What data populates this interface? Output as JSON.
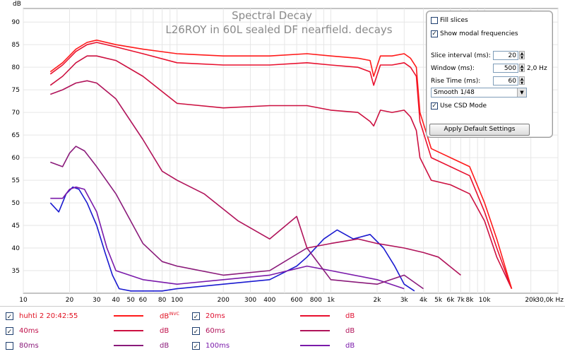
{
  "chart_data": {
    "type": "line",
    "title": "Spectral Decay",
    "subtitle": "L26ROY in 60L sealed DF nearfield. decays",
    "ylabel": "dB",
    "xlabel": "",
    "x_unit": "Hz",
    "x_scale": "log",
    "xlim": [
      10,
      30000
    ],
    "ylim": [
      30,
      93
    ],
    "grid": true,
    "y_ticks": [
      35,
      40,
      45,
      50,
      55,
      60,
      65,
      70,
      75,
      80,
      85,
      90
    ],
    "x_ticks": [
      {
        "v": 10,
        "l": "10"
      },
      {
        "v": 20,
        "l": "20"
      },
      {
        "v": 30,
        "l": "30"
      },
      {
        "v": 40,
        "l": "40"
      },
      {
        "v": 50,
        "l": "50"
      },
      {
        "v": 60,
        "l": "60"
      },
      {
        "v": 80,
        "l": "80"
      },
      {
        "v": 100,
        "l": "100"
      },
      {
        "v": 200,
        "l": "200"
      },
      {
        "v": 300,
        "l": "300"
      },
      {
        "v": 400,
        "l": "400"
      },
      {
        "v": 600,
        "l": "600"
      },
      {
        "v": 800,
        "l": "800"
      },
      {
        "v": 1000,
        "l": "1k"
      },
      {
        "v": 2000,
        "l": "2k"
      },
      {
        "v": 3000,
        "l": "3k"
      },
      {
        "v": 4000,
        "l": "4k"
      },
      {
        "v": 5000,
        "l": "5k"
      },
      {
        "v": 6000,
        "l": "6k"
      },
      {
        "v": 7000,
        "l": "7k"
      },
      {
        "v": 8000,
        "l": "8k"
      },
      {
        "v": 10000,
        "l": "10k"
      },
      {
        "v": 20000,
        "l": "20k"
      },
      {
        "v": 30000,
        "l": "30,0k Hz"
      }
    ],
    "series": [
      {
        "name": "huhti 2 20:42:55",
        "color": "#ff1a1a",
        "x": [
          15,
          18,
          22,
          26,
          30,
          40,
          60,
          100,
          200,
          400,
          700,
          1000,
          1500,
          1800,
          1900,
          2100,
          2500,
          3000,
          3300,
          3600,
          3800,
          4500,
          6000,
          8000,
          10000,
          12000,
          15000
        ],
        "y": [
          79,
          81,
          84,
          85.5,
          86,
          85,
          84,
          83,
          82.5,
          82.5,
          83,
          82.5,
          82,
          81.5,
          78,
          82.5,
          82.5,
          83,
          82,
          80,
          70,
          62,
          60,
          58,
          50,
          42,
          31
        ]
      },
      {
        "name": "20ms",
        "color": "#e8102e",
        "x": [
          15,
          18,
          22,
          26,
          30,
          40,
          60,
          100,
          200,
          400,
          700,
          1000,
          1500,
          1800,
          1900,
          2100,
          2500,
          3000,
          3300,
          3600,
          3800,
          4500,
          6000,
          8000,
          10000,
          12000,
          15000
        ],
        "y": [
          78.5,
          80.5,
          83.5,
          85,
          85.5,
          84.5,
          83,
          81,
          80.5,
          80.5,
          81,
          80.5,
          80,
          79,
          76,
          80.5,
          80.5,
          81,
          80,
          78,
          68,
          60,
          58,
          56,
          48,
          40,
          31
        ]
      },
      {
        "name": "40ms",
        "color": "#cc1040",
        "x": [
          15,
          18,
          22,
          26,
          30,
          40,
          60,
          100,
          200,
          400,
          700,
          1000,
          1500,
          1800,
          1900,
          2100,
          2500,
          3000,
          3300,
          3600,
          3800,
          4500,
          6000,
          8000,
          10000,
          12000,
          15000
        ],
        "y": [
          76,
          78,
          81,
          82.5,
          82.5,
          81.5,
          78,
          72,
          71,
          71.5,
          71.5,
          70.5,
          70,
          68,
          67,
          70.5,
          70,
          70.5,
          69,
          66,
          60,
          55,
          54,
          52,
          46,
          38,
          31
        ]
      },
      {
        "name": "60ms",
        "color": "#b0135a",
        "x": [
          15,
          18,
          22,
          26,
          30,
          40,
          60,
          80,
          100,
          150,
          250,
          400,
          600,
          700,
          1000,
          1500,
          2000,
          3000,
          4000,
          5000,
          7000
        ],
        "y": [
          74,
          75,
          76.5,
          77,
          76.5,
          73,
          64,
          57,
          55,
          52,
          46,
          42,
          47,
          40,
          41,
          42,
          41,
          40,
          39,
          38,
          34
        ]
      },
      {
        "name": "80ms",
        "color": "#8a1a7a",
        "x": [
          15,
          18,
          20,
          22,
          25,
          30,
          40,
          60,
          80,
          100,
          200,
          400,
          700,
          1000,
          2000,
          3000,
          4000
        ],
        "y": [
          59,
          58,
          61,
          62.5,
          61.5,
          58,
          52,
          41,
          37,
          36,
          34,
          35,
          40,
          33,
          32,
          34,
          31
        ]
      },
      {
        "name": "100ms",
        "color": "#7a1aaa",
        "x": [
          15,
          18,
          20,
          22,
          25,
          30,
          35,
          40,
          60,
          100,
          200,
          400,
          700,
          1000,
          2000,
          3000
        ],
        "y": [
          51,
          51,
          53,
          53.5,
          53,
          48,
          40,
          35,
          33,
          32,
          33,
          34,
          36,
          35,
          33,
          31
        ]
      },
      {
        "name": "",
        "color": "#1a1ad0",
        "x": [
          15,
          17,
          19,
          21,
          23,
          26,
          30,
          34,
          38,
          42,
          50,
          60,
          80,
          100,
          200,
          400,
          600,
          700,
          900,
          1100,
          1400,
          1800,
          2200,
          2600,
          3000,
          3500
        ],
        "y": [
          50,
          48,
          52,
          53.5,
          53,
          50,
          45,
          39,
          34,
          31,
          30.5,
          30.5,
          30.5,
          31,
          32,
          33,
          36,
          38,
          42,
          44,
          42,
          43,
          40,
          36,
          32,
          30.5
        ]
      }
    ]
  },
  "settings": {
    "fill_slices_label": "Fill slices",
    "fill_slices_checked": false,
    "show_modal_label": "Show modal frequencies",
    "show_modal_checked": true,
    "slice_interval_label": "Slice interval (ms):",
    "slice_interval_value": "20",
    "window_label": "Window (ms):",
    "window_value": "500",
    "window_unit": "2,0 Hz",
    "rise_time_label": "Rise Time (ms):",
    "rise_time_value": "60",
    "smoothing_value": "Smooth 1/48",
    "use_csd_label": "Use CSD Mode",
    "use_csd_checked": true,
    "apply_label": "Apply Default Settings",
    "check_glyph": "✓",
    "arrow_up": "▲",
    "arrow_down": "▼"
  },
  "legend": [
    {
      "name": "huhti 2 20:42:55",
      "color": "#ff1a1a",
      "unit": "dB",
      "sup": "INVC",
      "checked": true,
      "text_color": "#e01020"
    },
    {
      "name": "20ms",
      "color": "#e8102e",
      "unit": "dB",
      "sup": "",
      "checked": true,
      "text_color": "#e01030"
    },
    {
      "name": "40ms",
      "color": "#cc1040",
      "unit": "dB",
      "sup": "",
      "checked": true,
      "text_color": "#c0104a"
    },
    {
      "name": "60ms",
      "color": "#b0135a",
      "unit": "dB",
      "sup": "",
      "checked": true,
      "text_color": "#b0135a"
    },
    {
      "name": "80ms",
      "color": "#8a1a7a",
      "unit": "dB",
      "sup": "",
      "checked": false,
      "text_color": "#8a1a7a"
    },
    {
      "name": "100ms",
      "color": "#7a1aaa",
      "unit": "dB",
      "sup": "",
      "checked": true,
      "text_color": "#7a1aaa"
    }
  ]
}
